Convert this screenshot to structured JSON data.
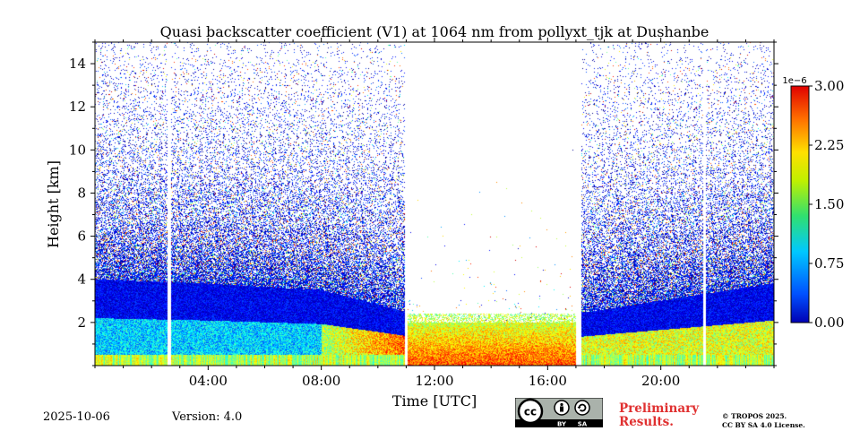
{
  "chart_data": {
    "type": "heatmap",
    "title": "Quasi backscatter coefficient (V1) at 1064 nm from pollyxt_tjk at Dushanbe",
    "xlabel": "Time [UTC]",
    "ylabel": "Height [km]",
    "x_range_hours": [
      0,
      24
    ],
    "x_ticks": [
      "04:00",
      "08:00",
      "12:00",
      "16:00",
      "20:00"
    ],
    "x_tick_hours": [
      4,
      8,
      12,
      16,
      20
    ],
    "ylim": [
      0,
      15
    ],
    "y_ticks": [
      "2",
      "4",
      "6",
      "8",
      "10",
      "12",
      "14"
    ],
    "y_tick_values": [
      2,
      4,
      6,
      8,
      10,
      12,
      14
    ],
    "colorbar": {
      "exponent_label": "1e−6",
      "ticks": [
        "0.00",
        "0.75",
        "1.50",
        "2.25",
        "3.00"
      ],
      "tick_values": [
        0,
        0.75,
        1.5,
        2.25,
        3.0
      ],
      "range": [
        0,
        3.0
      ],
      "colormap": "jet"
    },
    "data_gaps_hours": [
      [
        2.55,
        2.7
      ],
      [
        10.95,
        11.05
      ],
      [
        17.0,
        17.2
      ],
      [
        21.5,
        21.6
      ]
    ],
    "clear_sky_hours": [
      11.05,
      17.0
    ],
    "aerosol_layer_top_km": [
      {
        "hour": 0,
        "km": 4.0
      },
      {
        "hour": 4,
        "km": 3.8
      },
      {
        "hour": 8,
        "km": 3.5
      },
      {
        "hour": 11,
        "km": 2.5
      },
      {
        "hour": 17,
        "km": 2.4
      },
      {
        "hour": 24,
        "km": 3.8
      }
    ]
  },
  "footer": {
    "date": "2025-10-06",
    "version": "Version: 4.0",
    "preliminary_line1": "Preliminary",
    "preliminary_line2": "Results.",
    "copyright_line1": "© TROPOS 2025.",
    "copyright_line2": "CC BY SA 4.0 License.",
    "license_badge": {
      "cc": "cc",
      "by": "BY",
      "sa": "SA"
    }
  }
}
